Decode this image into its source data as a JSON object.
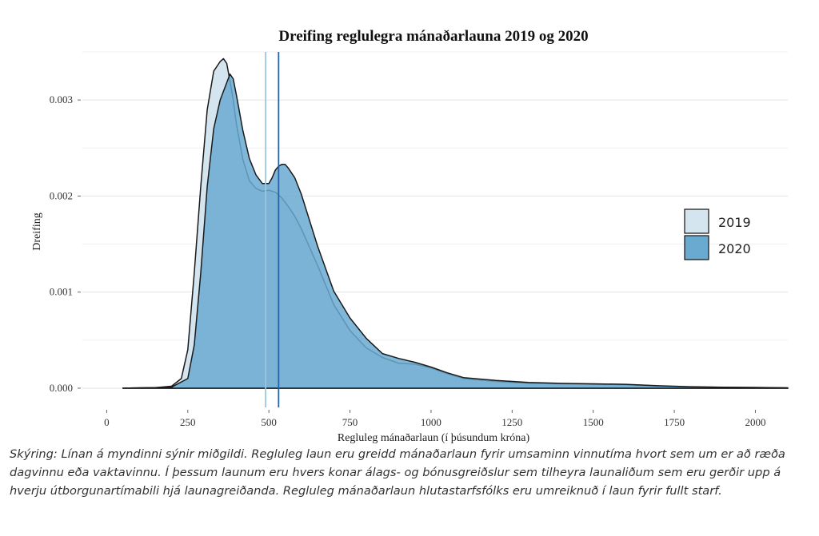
{
  "chart_data": {
    "type": "area",
    "title": "Dreifing reglulegra mánaðarlauna 2019 og 2020",
    "xlabel": "Regluleg mánaðarlaun (í þúsundum króna)",
    "ylabel": "Dreifing",
    "xlim": [
      -75,
      2100
    ],
    "ylim": [
      -0.0002,
      0.0035
    ],
    "x_ticks": [
      0,
      250,
      500,
      750,
      1000,
      1250,
      1500,
      1750,
      2000
    ],
    "x_tick_labels": [
      "0",
      "250",
      "500",
      "750",
      "1000",
      "1250",
      "1500",
      "1750",
      "2000"
    ],
    "y_ticks": [
      0,
      0.001,
      0.002,
      0.003
    ],
    "y_tick_labels": [
      "0.000",
      "0.001",
      "0.002",
      "0.003"
    ],
    "grid": true,
    "legend_position": "right",
    "series": [
      {
        "name": "2019",
        "color": "#d4e5f0",
        "median": 490,
        "x": [
          50,
          150,
          200,
          230,
          250,
          270,
          290,
          310,
          330,
          350,
          360,
          370,
          380,
          390,
          400,
          420,
          440,
          460,
          480,
          500,
          520,
          540,
          560,
          580,
          600,
          650,
          700,
          750,
          800,
          850,
          900,
          950,
          1000,
          1050,
          1100,
          1200,
          1300,
          1400,
          1500,
          1600,
          1700,
          1800,
          1900,
          2000,
          2100
        ],
        "values": [
          0,
          5e-06,
          2e-05,
          0.0001,
          0.0004,
          0.0012,
          0.0021,
          0.0029,
          0.0033,
          0.0034,
          0.00343,
          0.00338,
          0.0032,
          0.003,
          0.00275,
          0.00238,
          0.00216,
          0.00208,
          0.00205,
          0.00206,
          0.00204,
          0.00198,
          0.00189,
          0.00179,
          0.00166,
          0.00128,
          0.00087,
          0.0006,
          0.00042,
          0.00032,
          0.00026,
          0.00025,
          0.00021,
          0.00015,
          0.0001,
          7e-05,
          5e-05,
          4.5e-05,
          4e-05,
          3.5e-05,
          2e-05,
          1.2e-05,
          8e-06,
          5e-06,
          3e-06
        ]
      },
      {
        "name": "2020",
        "color": "#6aaad1",
        "median": 530,
        "x": [
          50,
          150,
          200,
          250,
          270,
          290,
          310,
          330,
          350,
          370,
          380,
          390,
          400,
          420,
          440,
          460,
          480,
          500,
          510,
          520,
          530,
          540,
          550,
          560,
          580,
          600,
          650,
          700,
          750,
          800,
          850,
          900,
          950,
          1000,
          1050,
          1100,
          1200,
          1300,
          1400,
          1500,
          1600,
          1700,
          1800,
          1900,
          2000,
          2100
        ],
        "values": [
          0,
          5e-06,
          1e-05,
          0.0001,
          0.00045,
          0.0012,
          0.0021,
          0.0027,
          0.003,
          0.00318,
          0.00327,
          0.00322,
          0.00305,
          0.00268,
          0.00239,
          0.00222,
          0.00213,
          0.00213,
          0.00219,
          0.00227,
          0.00231,
          0.00233,
          0.00233,
          0.00229,
          0.00219,
          0.00202,
          0.00148,
          0.00101,
          0.00073,
          0.00052,
          0.00036,
          0.00031,
          0.00027,
          0.00022,
          0.00016,
          0.00011,
          8e-05,
          6e-05,
          5e-05,
          4.5e-05,
          4e-05,
          2.5e-05,
          1.5e-05,
          1e-05,
          8e-06,
          4e-06
        ]
      }
    ]
  },
  "caption": "Skýring: Línan á myndinni sýnir miðgildi. Regluleg laun eru greidd mánaðarlaun fyrir umsaminn vinnutíma hvort sem um er að ræða dagvinnu eða vaktavinnu. Í þessum launum eru hvers konar álags- og bónusgreiðslur sem tilheyra launaliðum sem eru gerðir upp á hverju útborgunartímabili hjá launagreiðanda. Regluleg mánaðarlaun hlutastarfsfólks eru umreiknuð í laun fyrir fullt starf."
}
